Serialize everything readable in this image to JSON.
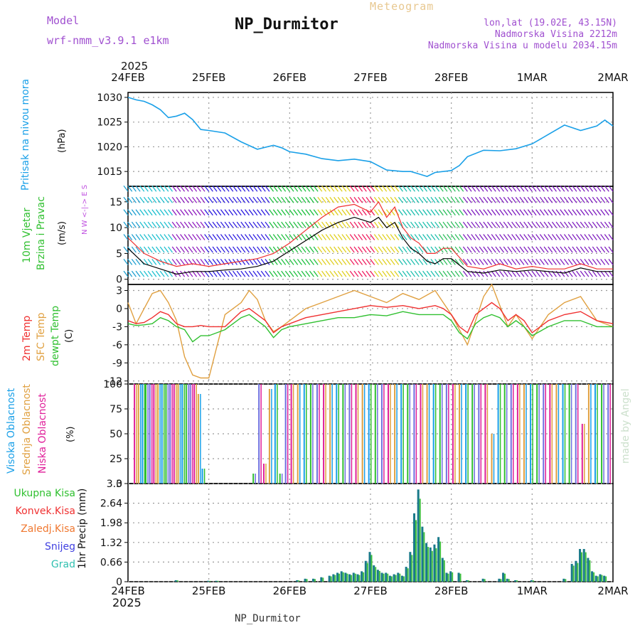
{
  "header": {
    "title": "NP_Durmitor",
    "model_label": "Model",
    "model_name": "wrf-nmm_v3.9.1 e1km",
    "meteogram_label": "Meteogram",
    "location": "lon,lat (19.02E, 43.15N)",
    "altitude": "Nadmorska Visina 2212m",
    "model_altitude": "Nadmorska Visina u modelu 2034.15m",
    "watermark": "made by Angel"
  },
  "footer": {
    "station": "NP_Durmitor"
  },
  "time_axis": {
    "year": "2025",
    "labels": [
      "24FEB",
      "25FEB",
      "26FEB",
      "27FEB",
      "28FEB",
      "1MAR",
      "2MAR"
    ]
  },
  "colors": {
    "pressure": "#1aa0e8",
    "t2m": "#f03030",
    "sfc": "#e0a040",
    "dewpt": "#30c030",
    "wind_speed": "#000000",
    "gust": "#f03030",
    "rain": "#1a7a8a",
    "snow": "#4040e0"
  },
  "chart_data": [
    {
      "type": "line",
      "ylabel_outer": "Pritisak na nivou mora",
      "ylabel_inner": "(hPa)",
      "ylim": [
        1012,
        1031
      ],
      "yticks": [
        1015,
        1020,
        1025,
        1030
      ],
      "x_days": [
        0,
        0.1,
        0.2,
        0.3,
        0.4,
        0.5,
        0.6,
        0.7,
        0.8,
        0.9,
        1.0,
        1.2,
        1.4,
        1.6,
        1.8,
        1.9,
        2.0,
        2.2,
        2.4,
        2.6,
        2.8,
        3.0,
        3.2,
        3.4,
        3.5,
        3.6,
        3.7,
        3.8,
        4.0,
        4.1,
        4.2,
        4.4,
        4.6,
        4.8,
        5.0,
        5.2,
        5.4,
        5.6,
        5.8,
        5.9,
        6.0
      ],
      "series": [
        {
          "values": [
            1030,
            1029.5,
            1029.2,
            1028.5,
            1027.5,
            1025.9,
            1026.2,
            1026.8,
            1025.5,
            1023.5,
            1023.3,
            1022.8,
            1021,
            1019.5,
            1020.3,
            1019.8,
            1019,
            1018.5,
            1017.6,
            1017.2,
            1017.5,
            1017,
            1015.3,
            1015,
            1015,
            1014.5,
            1014,
            1014.8,
            1015.2,
            1016.2,
            1018,
            1019.3,
            1019.2,
            1019.6,
            1020.6,
            1022.5,
            1024.4,
            1023.3,
            1024.2,
            1025.4,
            1024.2
          ]
        }
      ]
    },
    {
      "type": "line",
      "ylabel_outer_1": "10m Vjetar",
      "ylabel_outer_2": "Brzina i Pravac",
      "ylabel_inner": "(m/s)",
      "compass": "N  W <-|-> E  S",
      "ylim": [
        -1,
        18
      ],
      "yticks": [
        0,
        5,
        10,
        15
      ],
      "x_days": [
        0,
        0.2,
        0.4,
        0.6,
        0.8,
        1.0,
        1.2,
        1.4,
        1.6,
        1.8,
        2.0,
        2.2,
        2.4,
        2.6,
        2.8,
        3.0,
        3.1,
        3.2,
        3.3,
        3.4,
        3.5,
        3.6,
        3.7,
        3.8,
        3.9,
        4.0,
        4.2,
        4.4,
        4.6,
        4.8,
        5.0,
        5.2,
        5.4,
        5.6,
        5.8,
        6.0
      ],
      "series": [
        {
          "values": [
            6,
            3,
            2,
            1,
            1.5,
            1.5,
            1.8,
            2,
            2.5,
            3.5,
            5.5,
            7.5,
            9.5,
            11,
            12,
            11,
            12,
            10,
            11,
            8,
            6,
            5,
            3.5,
            3,
            4,
            4,
            1.5,
            1.2,
            1.8,
            1.5,
            1.8,
            1.5,
            1.2,
            2.2,
            1.5,
            1.5
          ]
        },
        {
          "values": [
            8,
            5,
            3.5,
            2.5,
            3,
            2.5,
            3,
            3.5,
            4,
            5,
            7,
            9.5,
            12,
            14,
            14.5,
            13,
            15,
            12,
            14,
            10,
            8,
            7,
            5,
            5,
            6,
            6,
            2.5,
            2,
            3,
            2,
            2.5,
            2,
            2,
            3,
            2,
            2
          ]
        }
      ]
    },
    {
      "type": "line",
      "ylabel_outer_1": "2m Temp",
      "ylabel_outer_2": "SFC Temp",
      "ylabel_outer_3": "dewpt Temp",
      "ylabel_inner": "(C)",
      "ylim": [
        -12.5,
        4
      ],
      "yticks": [
        3,
        0,
        -3,
        -6,
        -9,
        -12
      ],
      "x_days": [
        0,
        0.1,
        0.2,
        0.3,
        0.4,
        0.5,
        0.6,
        0.7,
        0.8,
        0.9,
        1.0,
        1.2,
        1.4,
        1.5,
        1.6,
        1.7,
        1.8,
        1.9,
        2.0,
        2.2,
        2.4,
        2.6,
        2.8,
        3.0,
        3.2,
        3.4,
        3.6,
        3.8,
        3.9,
        4.0,
        4.1,
        4.2,
        4.3,
        4.4,
        4.5,
        4.6,
        4.7,
        4.8,
        4.9,
        5.0,
        5.2,
        5.4,
        5.6,
        5.8,
        6.0
      ],
      "series": [
        {
          "values": [
            -2,
            -2.5,
            -2.3,
            -1.5,
            -0.5,
            -1,
            -2.5,
            -3,
            -3,
            -2.8,
            -3,
            -3,
            -0.5,
            0,
            -1,
            -2,
            -4,
            -3,
            -2.5,
            -1.5,
            -1,
            -0.5,
            0,
            0.5,
            0.2,
            0.5,
            0,
            0.5,
            0,
            -1,
            -3,
            -4,
            -1,
            0,
            1,
            0,
            -2,
            -1,
            -2,
            -4,
            -2,
            -1,
            -0.5,
            -2,
            -2.5
          ]
        },
        {
          "values": [
            1,
            -2.5,
            0,
            2.5,
            3,
            1,
            -2,
            -8,
            -11,
            -11.5,
            -11.5,
            -1,
            1,
            3,
            1.5,
            -2,
            -3.8,
            -3,
            -2,
            0,
            1,
            2,
            3,
            2,
            1,
            2.5,
            1.5,
            3,
            1,
            -1,
            -3.5,
            -6,
            -2,
            2,
            4,
            0.5,
            -3,
            -1,
            -3,
            -5,
            -1,
            1,
            2,
            -2,
            -3
          ]
        },
        {
          "values": [
            -2.5,
            -2.8,
            -2.7,
            -2.5,
            -1.5,
            -2,
            -3,
            -3.5,
            -5.5,
            -4.5,
            -4.5,
            -3.5,
            -1.5,
            -1,
            -2,
            -3,
            -4.8,
            -3.5,
            -3,
            -2.5,
            -2,
            -1.5,
            -1.5,
            -1,
            -1.2,
            -0.5,
            -1,
            -1,
            -1,
            -2,
            -4,
            -5,
            -2.5,
            -1.5,
            -1,
            -1.5,
            -3,
            -2,
            -3,
            -4.5,
            -3,
            -2,
            -2,
            -3,
            -3
          ]
        }
      ]
    },
    {
      "type": "bar",
      "ylabel_outer_1": "Visoka Oblacnost",
      "ylabel_outer_2": "Srednja Oblacnost",
      "ylabel_outer_3": "Niska Oblacnost",
      "ylabel_inner": "(%)",
      "ylim": [
        0,
        100
      ],
      "yticks": [
        0,
        25,
        50,
        75,
        100
      ],
      "description_series": [
        "high",
        "mid",
        "low"
      ],
      "x_days": [
        0.08,
        0.13,
        0.18,
        0.22,
        0.27,
        0.32,
        0.37,
        0.42,
        0.47,
        0.52,
        0.57,
        0.62,
        0.67,
        0.72,
        0.77,
        0.82,
        0.87,
        0.92,
        1.55,
        1.62,
        1.68,
        1.75,
        1.82,
        1.88,
        1.95,
        2.02,
        2.1,
        2.18,
        2.26,
        2.34,
        2.42,
        2.5,
        2.58,
        2.66,
        2.74,
        2.82,
        2.9,
        2.98,
        3.06,
        3.14,
        3.22,
        3.3,
        3.38,
        3.46,
        3.54,
        3.62,
        3.7,
        3.78,
        3.86,
        3.94,
        4.02,
        4.1,
        4.18,
        4.26,
        4.34,
        4.42,
        4.5,
        4.58,
        4.66,
        4.74,
        4.82,
        4.9,
        4.98,
        5.06,
        5.14,
        5.22,
        5.3,
        5.38,
        5.46,
        5.54,
        5.62,
        5.7,
        5.78,
        5.86,
        5.94
      ],
      "values": [
        100,
        100,
        100,
        100,
        100,
        100,
        100,
        100,
        100,
        100,
        100,
        100,
        100,
        100,
        100,
        100,
        90,
        15,
        10,
        100,
        20,
        95,
        100,
        10,
        100,
        100,
        100,
        100,
        100,
        100,
        100,
        100,
        100,
        100,
        100,
        100,
        100,
        100,
        100,
        100,
        100,
        100,
        100,
        100,
        100,
        100,
        100,
        100,
        100,
        100,
        100,
        100,
        100,
        100,
        100,
        100,
        50,
        100,
        100,
        100,
        100,
        100,
        100,
        100,
        100,
        100,
        100,
        100,
        100,
        100,
        60,
        100,
        100,
        100,
        100
      ]
    },
    {
      "type": "bar",
      "ylabel_outer_1": "Ukupna Kisa",
      "ylabel_outer_2": "Konvek.Kisa",
      "ylabel_outer_3": "Zaledj.Kisa",
      "ylabel_outer_4": "Snijeg",
      "ylabel_outer_5": "Grad",
      "ylabel_inner": "1hr Precip (mm)",
      "ylim": [
        0,
        3.3
      ],
      "yticks": [
        0,
        0.66,
        1.32,
        1.98,
        2.64,
        3.3
      ],
      "x_days": [
        0.6,
        1.0,
        1.1,
        2.1,
        2.2,
        2.3,
        2.4,
        2.5,
        2.55,
        2.6,
        2.65,
        2.7,
        2.75,
        2.8,
        2.85,
        2.9,
        2.95,
        3.0,
        3.05,
        3.1,
        3.15,
        3.2,
        3.25,
        3.3,
        3.35,
        3.4,
        3.45,
        3.5,
        3.55,
        3.6,
        3.65,
        3.7,
        3.75,
        3.8,
        3.85,
        3.9,
        3.95,
        4.0,
        4.1,
        4.2,
        4.4,
        4.6,
        4.65,
        4.7,
        4.8,
        5.0,
        5.4,
        5.5,
        5.55,
        5.6,
        5.65,
        5.7,
        5.75,
        5.8,
        5.85,
        5.9
      ],
      "values": [
        0.05,
        0.03,
        0.03,
        0.05,
        0.1,
        0.1,
        0.15,
        0.2,
        0.25,
        0.3,
        0.35,
        0.3,
        0.25,
        0.3,
        0.25,
        0.35,
        0.7,
        1.0,
        0.55,
        0.4,
        0.3,
        0.3,
        0.2,
        0.25,
        0.3,
        0.2,
        0.5,
        1.0,
        2.3,
        3.1,
        1.85,
        1.3,
        1.15,
        1.25,
        1.5,
        0.8,
        0.3,
        0.35,
        0.3,
        0.05,
        0.1,
        0.1,
        0.3,
        0.1,
        0.05,
        0.05,
        0.1,
        0.6,
        0.7,
        1.1,
        1.1,
        0.8,
        0.35,
        0.2,
        0.25,
        0.2
      ]
    }
  ]
}
